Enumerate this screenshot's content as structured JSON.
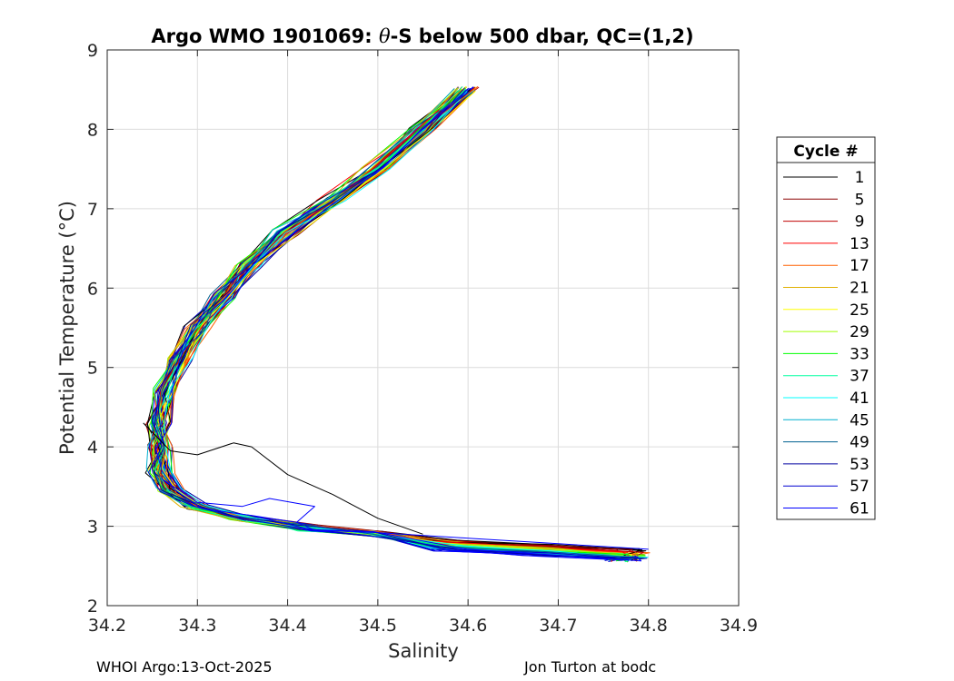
{
  "chart_data": {
    "type": "line",
    "title": "Argo WMO 1901069: θ-S below 500 dbar,  QC=(1,2)",
    "title_parts": {
      "prefix": "Argo WMO 1901069: ",
      "theta": "θ",
      "suffix": "-S below 500 dbar,  QC=(1,2)"
    },
    "xlabel": "Salinity",
    "ylabel": "Potential Temperature (°C)",
    "xlim": [
      34.2,
      34.9
    ],
    "ylim": [
      2,
      9
    ],
    "xticks": [
      "34.2",
      "34.3",
      "34.4",
      "34.5",
      "34.6",
      "34.7",
      "34.8",
      "34.9"
    ],
    "yticks": [
      "2",
      "3",
      "4",
      "5",
      "6",
      "7",
      "8",
      "9"
    ],
    "grid": true,
    "legend": {
      "title": "Cycle #",
      "placement": "right-outside",
      "entries": [
        {
          "label": "1",
          "color": "#000000"
        },
        {
          "label": "5",
          "color": "#8b0000"
        },
        {
          "label": "9",
          "color": "#c00000"
        },
        {
          "label": "13",
          "color": "#ff0000"
        },
        {
          "label": "17",
          "color": "#ff6000"
        },
        {
          "label": "21",
          "color": "#e0b000"
        },
        {
          "label": "25",
          "color": "#ffff00"
        },
        {
          "label": "29",
          "color": "#a0ff00"
        },
        {
          "label": "33",
          "color": "#00ff00"
        },
        {
          "label": "37",
          "color": "#00ffa0"
        },
        {
          "label": "41",
          "color": "#00ffff"
        },
        {
          "label": "45",
          "color": "#00b0d0"
        },
        {
          "label": "49",
          "color": "#006090"
        },
        {
          "label": "53",
          "color": "#0000a0"
        },
        {
          "label": "57",
          "color": "#0000d0"
        },
        {
          "label": "61",
          "color": "#0000ff"
        }
      ]
    },
    "base_profile": {
      "s": [
        34.6,
        34.55,
        34.5,
        34.45,
        34.4,
        34.36,
        34.33,
        34.3,
        34.28,
        34.265,
        34.26,
        34.258,
        34.26,
        34.27,
        34.3,
        34.35,
        34.42,
        34.5,
        34.6,
        34.7,
        34.8
      ],
      "t": [
        8.5,
        8.0,
        7.5,
        7.1,
        6.7,
        6.3,
        5.9,
        5.5,
        5.1,
        4.7,
        4.3,
        4.0,
        3.7,
        3.45,
        3.25,
        3.1,
        2.98,
        2.9,
        2.84,
        2.78,
        2.72
      ]
    },
    "annotated_lines": [
      {
        "name": "cycle-1-spike",
        "color": "#000000",
        "s": [
          34.24,
          34.27,
          34.3,
          34.34,
          34.36,
          34.4,
          34.45,
          34.5,
          34.55
        ],
        "t": [
          4.3,
          3.95,
          3.9,
          4.05,
          4.0,
          3.65,
          3.4,
          3.1,
          2.9
        ]
      },
      {
        "name": "cycle-61-loop",
        "color": "#0000ff",
        "s": [
          34.26,
          34.3,
          34.35,
          34.38,
          34.43,
          34.41,
          34.43,
          34.5,
          34.6,
          34.7,
          34.8
        ],
        "t": [
          3.6,
          3.3,
          3.25,
          3.35,
          3.25,
          3.05,
          2.95,
          2.92,
          2.85,
          2.78,
          2.71
        ]
      }
    ]
  },
  "footer": {
    "left": "WHOI Argo:13-Oct-2025",
    "right": "Jon Turton at bodc"
  }
}
